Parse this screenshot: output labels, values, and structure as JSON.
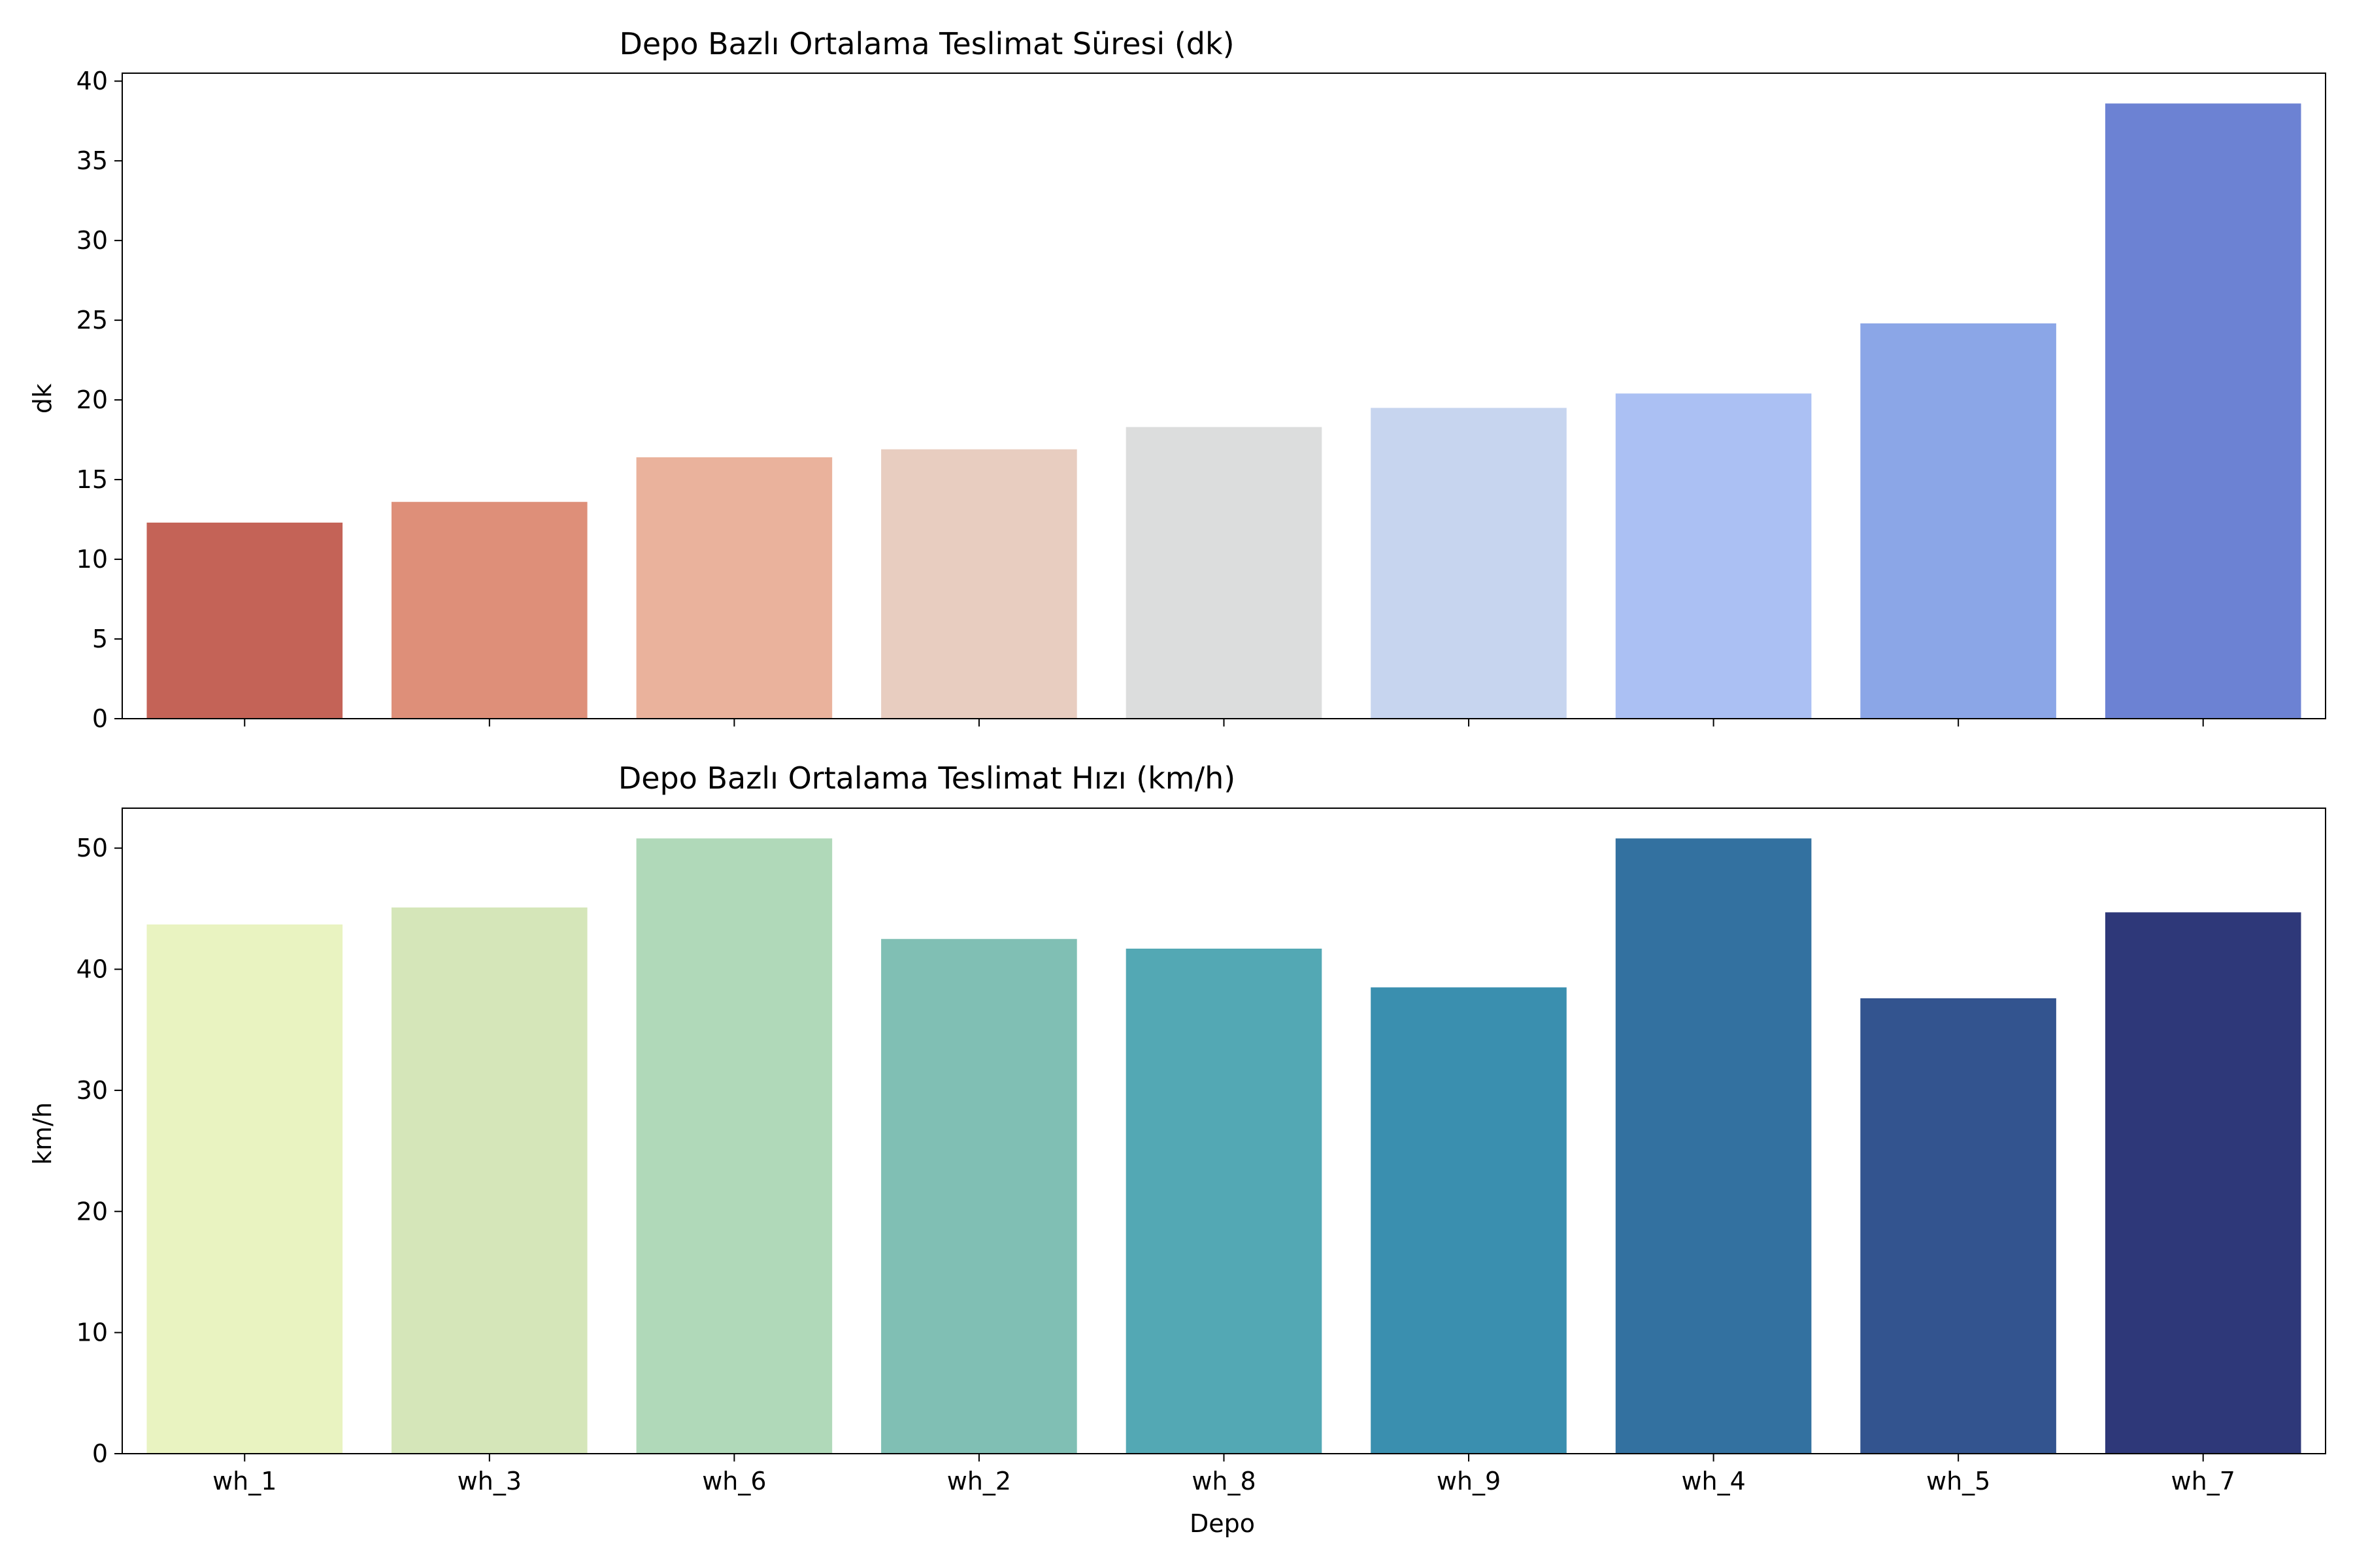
{
  "chart_data": [
    {
      "type": "bar",
      "title": "Depo Bazlı Ortalama Teslimat Süresi (dk)",
      "xlabel": "",
      "ylabel": "dk",
      "categories": [
        "wh_1",
        "wh_3",
        "wh_6",
        "wh_2",
        "wh_8",
        "wh_9",
        "wh_4",
        "wh_5",
        "wh_7"
      ],
      "values": [
        12.3,
        13.6,
        16.4,
        16.9,
        18.3,
        19.5,
        20.4,
        24.8,
        38.6
      ],
      "colors": [
        "#c46357",
        "#de8f79",
        "#eab29c",
        "#e8cdc0",
        "#dcdddd",
        "#c7d5ef",
        "#abc0f3",
        "#8ba6e7",
        "#6c82d3"
      ],
      "ylim": [
        0,
        40.5
      ],
      "yticks": [
        0,
        5,
        10,
        15,
        20,
        25,
        30,
        35,
        40
      ],
      "show_xtick_labels": false,
      "grid": false
    },
    {
      "type": "bar",
      "title": "Depo Bazlı Ortalama Teslimat Hızı (km/h)",
      "xlabel": "Depo",
      "ylabel": "km/h",
      "categories": [
        "wh_1",
        "wh_3",
        "wh_6",
        "wh_2",
        "wh_8",
        "wh_9",
        "wh_4",
        "wh_5",
        "wh_7"
      ],
      "values": [
        43.7,
        45.1,
        50.8,
        42.5,
        41.7,
        38.5,
        50.8,
        37.6,
        44.7
      ],
      "colors": [
        "#e9f3c1",
        "#d5e6b9",
        "#b0d9b9",
        "#80bfb4",
        "#53a8b4",
        "#3a8faf",
        "#3371a0",
        "#33548f",
        "#2e3879"
      ],
      "ylim": [
        0,
        53.3
      ],
      "yticks": [
        0,
        10,
        20,
        30,
        40,
        50
      ],
      "show_xtick_labels": true,
      "grid": false
    }
  ]
}
